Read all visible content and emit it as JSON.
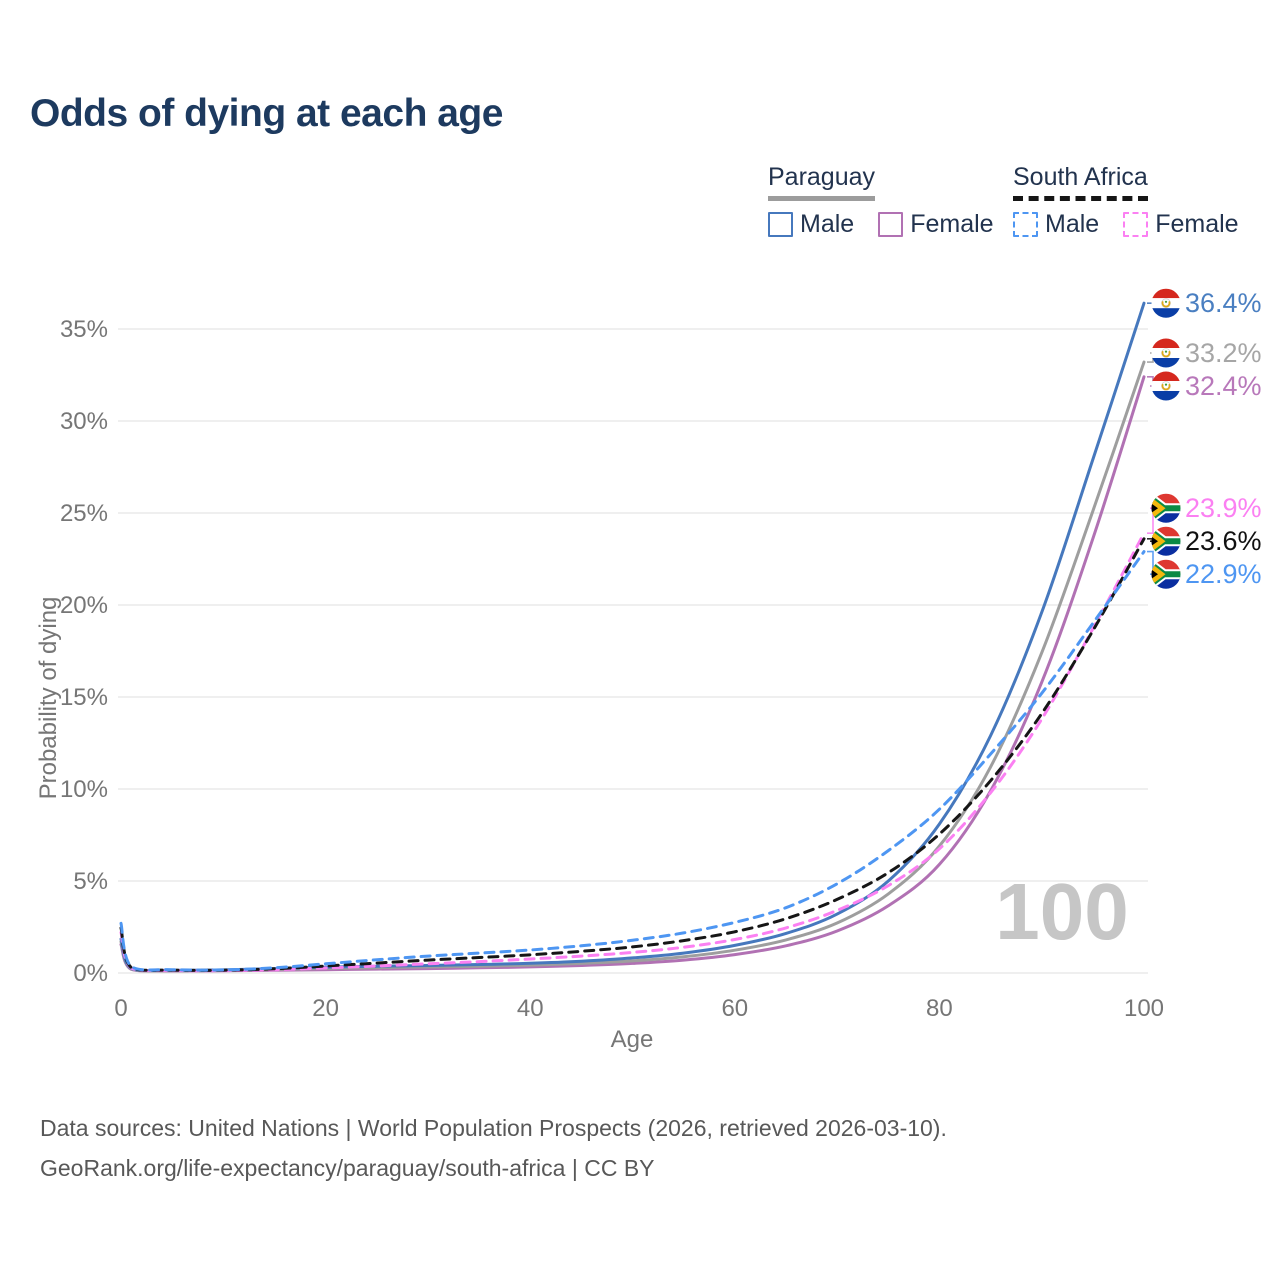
{
  "title": "Odds of dying at each age",
  "legend": {
    "groups": [
      {
        "label": "Paraguay",
        "underline": "solid",
        "underline_color": "#9c9c9c",
        "items": [
          {
            "label": "Male",
            "color": "#4678bd",
            "dash": false
          },
          {
            "label": "Female",
            "color": "#b171b3",
            "dash": false
          }
        ]
      },
      {
        "label": "South Africa",
        "underline": "dashed",
        "underline_color": "#161616",
        "items": [
          {
            "label": "Male",
            "color": "#4e96f2",
            "dash": true
          },
          {
            "label": "Female",
            "color": "#fb80f2",
            "dash": true
          }
        ]
      }
    ]
  },
  "chart_data": {
    "type": "line",
    "title": "Odds of dying at each age",
    "xlabel": "Age",
    "ylabel": "Probability of dying",
    "xlim": [
      0,
      100
    ],
    "ylim": [
      0,
      37.5
    ],
    "x_ticks": [
      0,
      20,
      40,
      60,
      80,
      100
    ],
    "y_ticks": [
      "0%",
      "5%",
      "10%",
      "15%",
      "20%",
      "25%",
      "30%",
      "35%"
    ],
    "grid": "horizontal",
    "grid_color": "#eaeaea",
    "axis_color": "#767676",
    "watermark": "100",
    "legend_position": "top-right",
    "x": [
      0,
      1,
      5,
      10,
      15,
      20,
      25,
      30,
      35,
      40,
      45,
      50,
      55,
      60,
      65,
      70,
      75,
      80,
      85,
      90,
      95,
      100
    ],
    "series": [
      {
        "id": "paraguay-female",
        "name": "Paraguay Female",
        "country": "Paraguay",
        "sex": "Female",
        "flag": "PY",
        "color": "#b171b3",
        "label_color": "#b878ba",
        "dash": "solid",
        "end_label": "32.4%",
        "values": [
          1.55,
          0.2,
          0.11,
          0.12,
          0.15,
          0.18,
          0.21,
          0.24,
          0.28,
          0.33,
          0.41,
          0.52,
          0.7,
          1.0,
          1.48,
          2.28,
          3.65,
          5.9,
          9.9,
          15.8,
          23.6,
          32.4
        ]
      },
      {
        "id": "paraguay-total",
        "name": "Paraguay",
        "country": "Paraguay",
        "sex": "Both",
        "flag": "PY",
        "color": "#9e9e9e",
        "label_color": "#a6a6a6",
        "dash": "solid",
        "end_label": "33.2%",
        "values": [
          1.7,
          0.22,
          0.13,
          0.14,
          0.19,
          0.25,
          0.29,
          0.33,
          0.37,
          0.43,
          0.52,
          0.66,
          0.88,
          1.24,
          1.8,
          2.72,
          4.3,
          6.9,
          11.2,
          17.4,
          25.1,
          33.2
        ]
      },
      {
        "id": "paraguay-male",
        "name": "Paraguay Male",
        "country": "Paraguay",
        "sex": "Male",
        "flag": "PY",
        "color": "#4678bd",
        "label_color": "#4a7fc1",
        "dash": "solid",
        "end_label": "36.4%",
        "values": [
          1.85,
          0.25,
          0.15,
          0.17,
          0.24,
          0.32,
          0.37,
          0.41,
          0.46,
          0.53,
          0.64,
          0.82,
          1.08,
          1.5,
          2.15,
          3.2,
          5.0,
          8.1,
          12.9,
          19.6,
          27.9,
          36.4
        ]
      },
      {
        "id": "south-africa-female",
        "name": "South Africa Female",
        "country": "South Africa",
        "sex": "Female",
        "flag": "ZA",
        "color": "#fb80f2",
        "label_color": "#fb80f2",
        "dash": "dashed",
        "end_label": "23.9%",
        "values": [
          2.2,
          0.27,
          0.14,
          0.13,
          0.18,
          0.27,
          0.38,
          0.5,
          0.62,
          0.76,
          0.92,
          1.12,
          1.4,
          1.82,
          2.45,
          3.4,
          4.75,
          6.75,
          9.8,
          13.8,
          18.7,
          23.9
        ]
      },
      {
        "id": "south-africa-total",
        "name": "South Africa",
        "country": "South Africa",
        "sex": "Both",
        "flag": "ZA",
        "color": "#161616",
        "label_color": "#111111",
        "dash": "dashed",
        "end_label": "23.6%",
        "values": [
          2.45,
          0.3,
          0.16,
          0.15,
          0.23,
          0.38,
          0.54,
          0.7,
          0.84,
          0.99,
          1.18,
          1.42,
          1.76,
          2.24,
          2.95,
          4.0,
          5.45,
          7.55,
          10.45,
          14.1,
          18.6,
          23.6
        ]
      },
      {
        "id": "south-africa-male",
        "name": "South Africa Male",
        "country": "South Africa",
        "sex": "Male",
        "flag": "ZA",
        "color": "#4e96f2",
        "label_color": "#4e96f2",
        "dash": "dashed",
        "end_label": "22.9%",
        "values": [
          2.7,
          0.35,
          0.18,
          0.17,
          0.28,
          0.5,
          0.72,
          0.92,
          1.08,
          1.25,
          1.48,
          1.78,
          2.18,
          2.75,
          3.55,
          4.85,
          6.65,
          8.9,
          11.9,
          15.2,
          19.0,
          22.9
        ]
      }
    ]
  },
  "footer": {
    "line1": "Data sources: United Nations | World Population Prospects (2026, retrieved 2026-03-10).",
    "line2": "GeoRank.org/life-expectancy/paraguay/south-africa | CC BY"
  }
}
